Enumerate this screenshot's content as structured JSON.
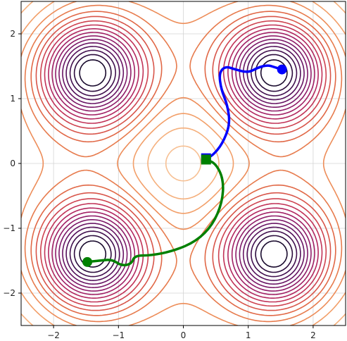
{
  "chart_data": {
    "type": "contour",
    "title": "",
    "xlabel": "",
    "ylabel": "",
    "xlim": [
      -2.5,
      2.5
    ],
    "ylim": [
      -2.5,
      2.5
    ],
    "grid": true,
    "x_ticks": [
      -2,
      -1,
      0,
      1,
      2
    ],
    "y_ticks": [
      -2,
      -1,
      0,
      1,
      2
    ],
    "x_tick_labels": [
      "−2",
      "−1",
      "0",
      "1",
      "2"
    ],
    "y_tick_labels": [
      "−2",
      "−1",
      "0",
      "1",
      "2"
    ],
    "contour": {
      "minima": [
        [
          -1.41,
          1.41
        ],
        [
          1.41,
          1.41
        ],
        [
          -1.41,
          -1.41
        ],
        [
          1.41,
          -1.41
        ]
      ],
      "local_max": [
        0,
        0
      ],
      "levels": 18,
      "colormap": [
        "#1a0b2e",
        "#3b0f4a",
        "#5c1260",
        "#7e1a6a",
        "#9e1e66",
        "#bb2b5c",
        "#d1464e",
        "#e06645",
        "#eb8652",
        "#f3a46e",
        "#f7c093"
      ]
    },
    "series": [
      {
        "color": "#0000ff",
        "start_marker": "square",
        "end_marker": "circle",
        "points": [
          [
            0.35,
            0.08
          ],
          [
            0.45,
            0.12
          ],
          [
            0.6,
            0.3
          ],
          [
            0.72,
            0.6
          ],
          [
            0.68,
            0.9
          ],
          [
            0.58,
            1.15
          ],
          [
            0.55,
            1.4
          ],
          [
            0.65,
            1.5
          ],
          [
            0.8,
            1.45
          ],
          [
            1.0,
            1.4
          ],
          [
            1.15,
            1.48
          ],
          [
            1.3,
            1.52
          ],
          [
            1.42,
            1.48
          ],
          [
            1.52,
            1.45
          ]
        ]
      },
      {
        "color": "#008000",
        "start_marker": "square",
        "end_marker": "circle",
        "points": [
          [
            0.35,
            0.06
          ],
          [
            0.5,
            0.0
          ],
          [
            0.62,
            -0.25
          ],
          [
            0.6,
            -0.6
          ],
          [
            0.45,
            -0.95
          ],
          [
            0.2,
            -1.2
          ],
          [
            -0.15,
            -1.35
          ],
          [
            -0.5,
            -1.42
          ],
          [
            -0.75,
            -1.42
          ],
          [
            -0.8,
            -1.55
          ],
          [
            -0.95,
            -1.58
          ],
          [
            -1.1,
            -1.48
          ],
          [
            -1.3,
            -1.5
          ],
          [
            -1.48,
            -1.52
          ]
        ]
      }
    ]
  }
}
